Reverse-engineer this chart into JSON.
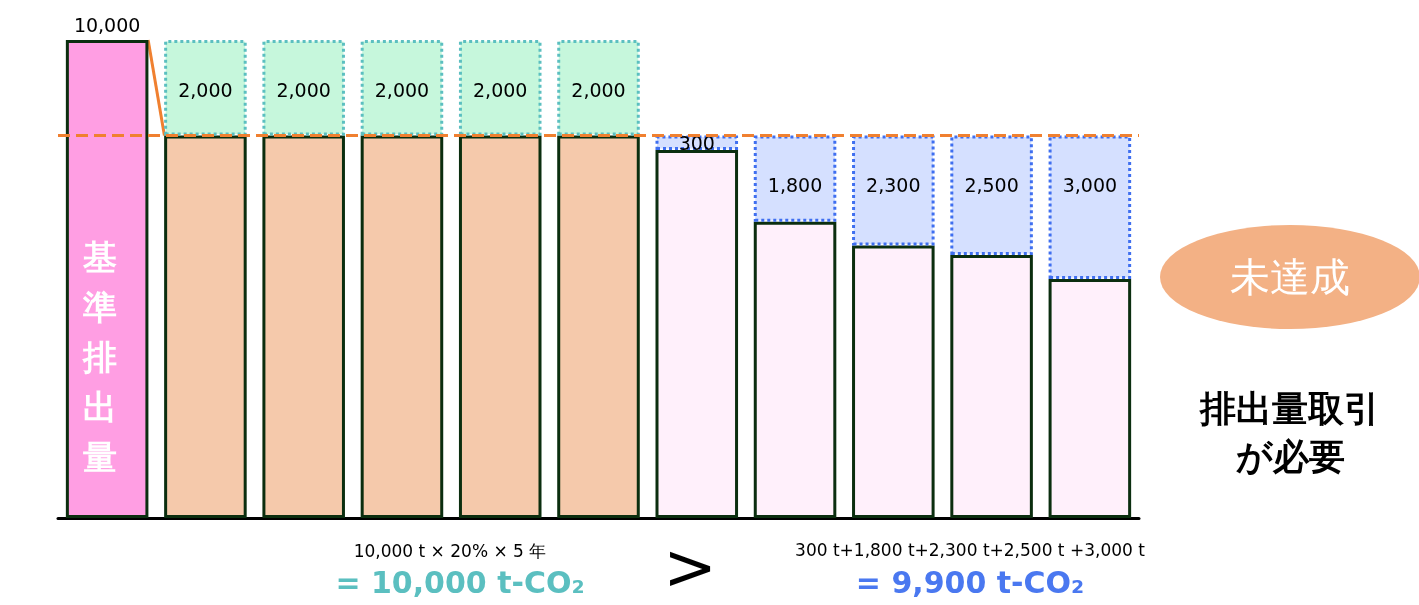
{
  "chart_data": {
    "type": "bar",
    "stacked": true,
    "categories": [
      null,
      null,
      null,
      null,
      null,
      null,
      null,
      null,
      null,
      null,
      null
    ],
    "series": [
      {
        "colors": [
          "#ff9ee3",
          "#f5c9ab",
          "#f5c9ab",
          "#f5c9ab",
          "#f5c9ab",
          "#f5c9ab",
          "#fff0fb",
          "#fff0fb",
          "#fff0fb",
          "#fff0fb",
          "#fff0fb"
        ],
        "values": [
          10000,
          8000,
          8000,
          8000,
          8000,
          8000,
          7700,
          6200,
          5700,
          5500,
          5000
        ],
        "value_labels": [
          "10,000",
          null,
          null,
          null,
          null,
          null,
          null,
          null,
          null,
          null,
          null
        ]
      },
      {
        "colors": [
          "#c6f7dc",
          "#c6f7dc",
          "#c6f7dc",
          "#c6f7dc",
          "#c6f7dc",
          "#c6f7dc",
          "#d5e0ff",
          "#d5e0ff",
          "#d5e0ff",
          "#d5e0ff",
          "#d5e0ff"
        ],
        "values": [
          null,
          2000,
          2000,
          2000,
          2000,
          2000,
          300,
          1800,
          2300,
          2500,
          3000
        ],
        "value_labels": [
          null,
          "2,000",
          "2,000",
          "2,000",
          "2,000",
          "2,000",
          "300",
          "1,800",
          "2,300",
          "2,500",
          "3,000"
        ]
      }
    ],
    "ref_lines": [
      {
        "axis": "y",
        "value": 8000,
        "color": "#f08030",
        "line_style": "dashed"
      }
    ],
    "annotations": [
      "基準排出量",
      "未達成",
      "排出量取引が必要",
      "10,000 t × 20% × 5 年",
      "= 10,000 t-CO₂",
      ">",
      "300 t+1,800 t+2,300 t+2,500 t +3,000 t",
      "= 9,900 t-CO₂"
    ]
  }
}
